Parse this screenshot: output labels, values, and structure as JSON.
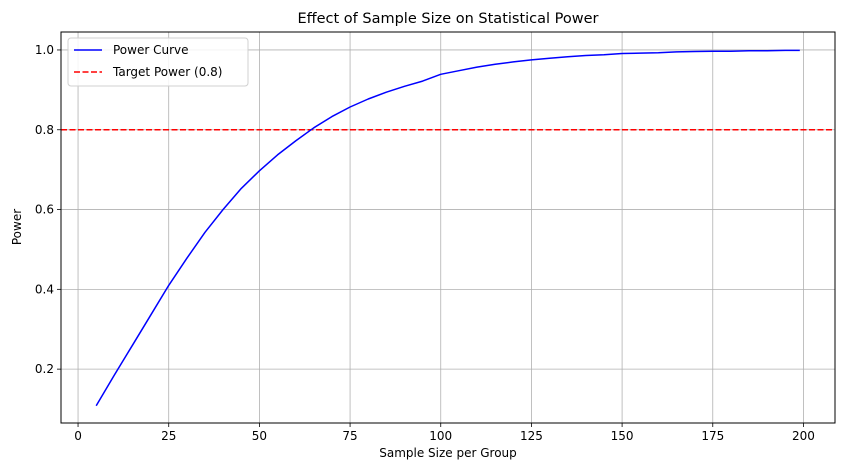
{
  "chart_data": {
    "type": "line",
    "title": "Effect of Sample Size on Statistical Power",
    "xlabel": "Sample Size per Group",
    "ylabel": "Power",
    "xlim": [
      -4.7,
      208.7
    ],
    "ylim": [
      0.065,
      1.045
    ],
    "xticks": [
      0,
      25,
      50,
      75,
      100,
      125,
      150,
      175,
      200
    ],
    "yticks": [
      0.2,
      0.4,
      0.6,
      0.8,
      1.0
    ],
    "ytick_labels": [
      "0.2",
      "0.4",
      "0.6",
      "0.8",
      "1.0"
    ],
    "grid": true,
    "legend_position": "upper-left",
    "series": [
      {
        "name": "Power Curve",
        "color": "#0000ff",
        "style": "solid",
        "x": [
          5,
          10,
          15,
          20,
          25,
          30,
          35,
          40,
          45,
          50,
          55,
          60,
          65,
          70,
          75,
          80,
          85,
          90,
          95,
          100,
          105,
          110,
          115,
          120,
          125,
          130,
          135,
          140,
          145,
          150,
          155,
          160,
          165,
          170,
          175,
          180,
          185,
          190,
          195,
          199
        ],
        "y": [
          0.108,
          0.185,
          0.26,
          0.335,
          0.41,
          0.478,
          0.543,
          0.6,
          0.653,
          0.697,
          0.737,
          0.772,
          0.805,
          0.833,
          0.857,
          0.877,
          0.894,
          0.909,
          0.922,
          0.939,
          0.948,
          0.957,
          0.964,
          0.97,
          0.975,
          0.979,
          0.983,
          0.986,
          0.988,
          0.991,
          0.992,
          0.993,
          0.995,
          0.996,
          0.997,
          0.997,
          0.998,
          0.998,
          0.999,
          0.999
        ]
      }
    ],
    "reference_lines": [
      {
        "name": "Target Power (0.8)",
        "y": 0.8,
        "color": "#ff0000",
        "style": "dashed"
      }
    ]
  }
}
